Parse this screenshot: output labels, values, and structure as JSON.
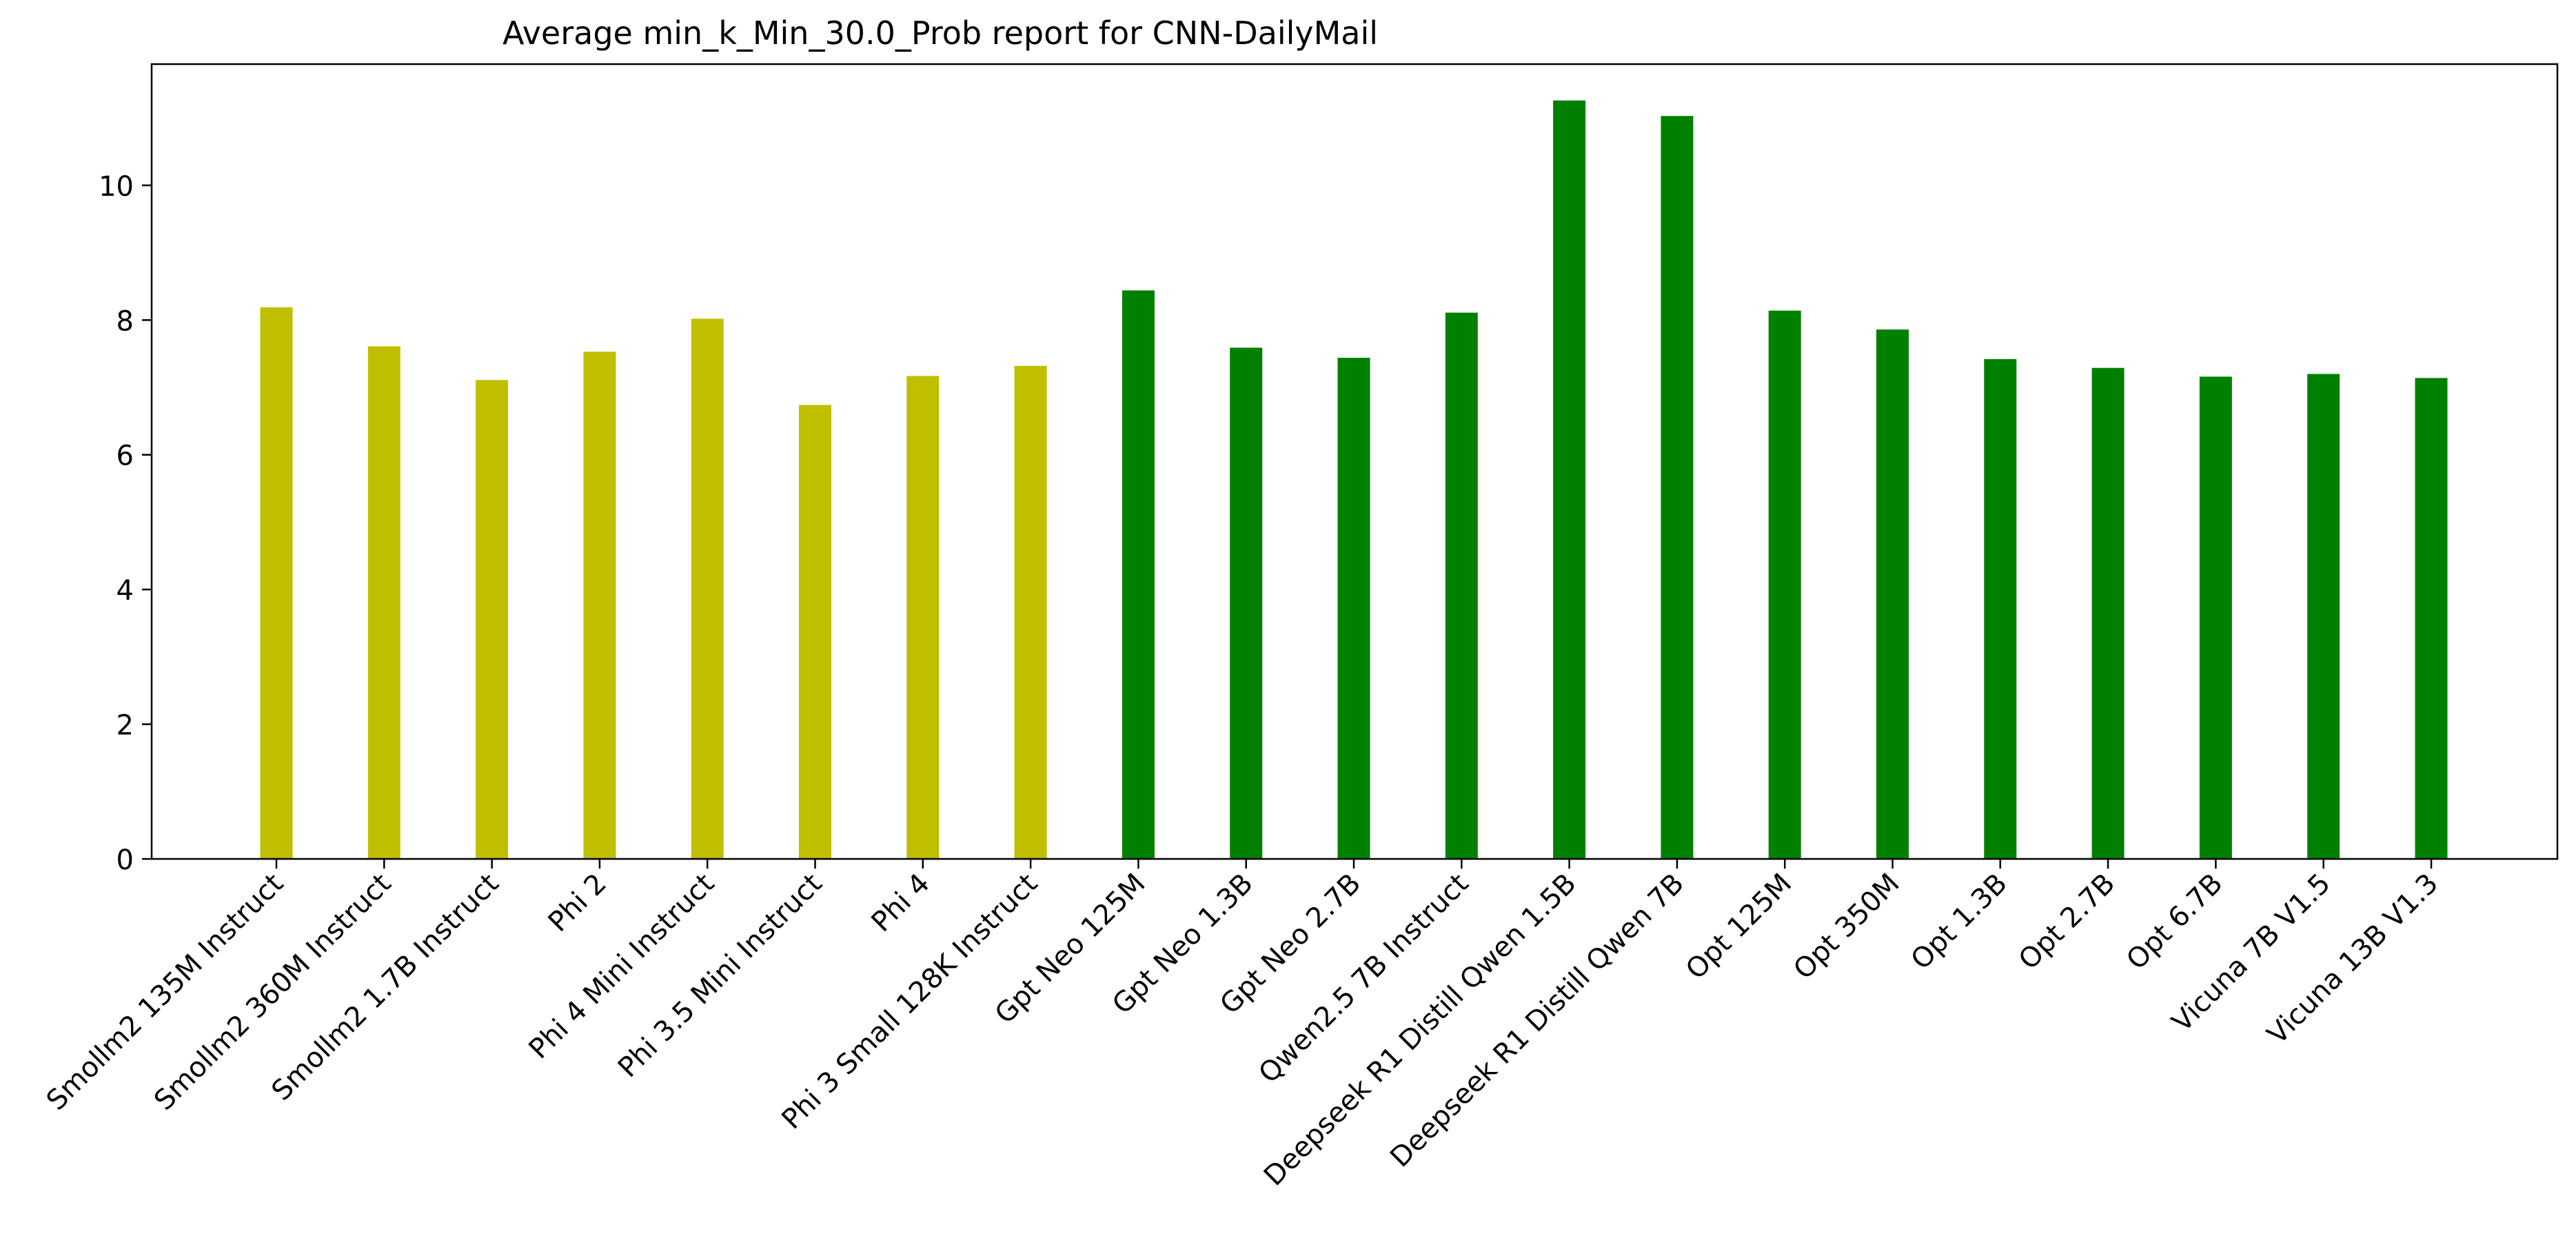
{
  "chart_data": {
    "type": "bar",
    "title": "Average min_k_Min_30.0_Prob report for CNN-DailyMail",
    "xlabel": "",
    "ylabel": "",
    "ylim": [
      0,
      11.8
    ],
    "yticks": [
      0,
      2,
      4,
      6,
      8,
      10
    ],
    "grid": false,
    "categories": [
      "Smollm2 135M Instruct",
      "Smollm2 360M Instruct",
      "Smollm2 1.7B Instruct",
      "Phi 2",
      "Phi 4 Mini Instruct",
      "Phi 3.5 Mini Instruct",
      "Phi 4",
      "Phi 3 Small 128K Instruct",
      "Gpt Neo 125M",
      "Gpt Neo 1.3B",
      "Gpt Neo 2.7B",
      "Qwen2.5 7B Instruct",
      "Deepseek R1 Distill Qwen 1.5B",
      "Deepseek R1 Distill Qwen 7B",
      "Opt 125M",
      "Opt 350M",
      "Opt 1.3B",
      "Opt 2.7B",
      "Opt 6.7B",
      "Vicuna 7B V1.5",
      "Vicuna 13B V1.3"
    ],
    "values": [
      8.19,
      7.61,
      7.11,
      7.53,
      8.02,
      6.74,
      7.17,
      7.32,
      8.44,
      7.59,
      7.44,
      8.11,
      11.26,
      11.03,
      8.14,
      7.86,
      7.42,
      7.29,
      7.16,
      7.2,
      7.14
    ],
    "bar_colors": [
      "#bfbf00",
      "#bfbf00",
      "#bfbf00",
      "#bfbf00",
      "#bfbf00",
      "#bfbf00",
      "#bfbf00",
      "#bfbf00",
      "#008000",
      "#008000",
      "#008000",
      "#008000",
      "#008000",
      "#008000",
      "#008000",
      "#008000",
      "#008000",
      "#008000",
      "#008000",
      "#008000",
      "#008000"
    ]
  }
}
